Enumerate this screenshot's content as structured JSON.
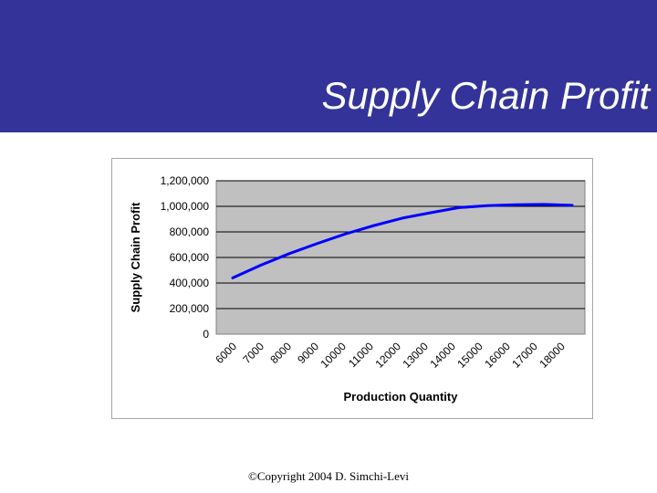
{
  "slide": {
    "title": "Supply Chain Profit",
    "footer": "©Copyright 2004 D. Simchi-Levi"
  },
  "colors": {
    "header_band": "#333399",
    "plot_area": "#c0c0c0",
    "series_line": "#0000ff"
  },
  "chart_data": {
    "type": "line",
    "title": "",
    "xlabel": "Production Quantity",
    "ylabel": "Supply Chain Profit",
    "categories": [
      "6000",
      "7000",
      "8000",
      "9000",
      "10000",
      "11000",
      "12000",
      "13000",
      "14000",
      "15000",
      "16000",
      "17000",
      "18000"
    ],
    "series": [
      {
        "values": [
          440000,
          540000,
          630000,
          710000,
          785000,
          850000,
          908000,
          950000,
          990000,
          1005000,
          1012000,
          1015000,
          1008000
        ]
      }
    ],
    "yticks": [
      "0",
      "200,000",
      "400,000",
      "600,000",
      "800,000",
      "1,000,000",
      "1,200,000"
    ],
    "ylim": [
      0,
      1200000
    ],
    "grid": "horizontal",
    "legend": "none"
  }
}
